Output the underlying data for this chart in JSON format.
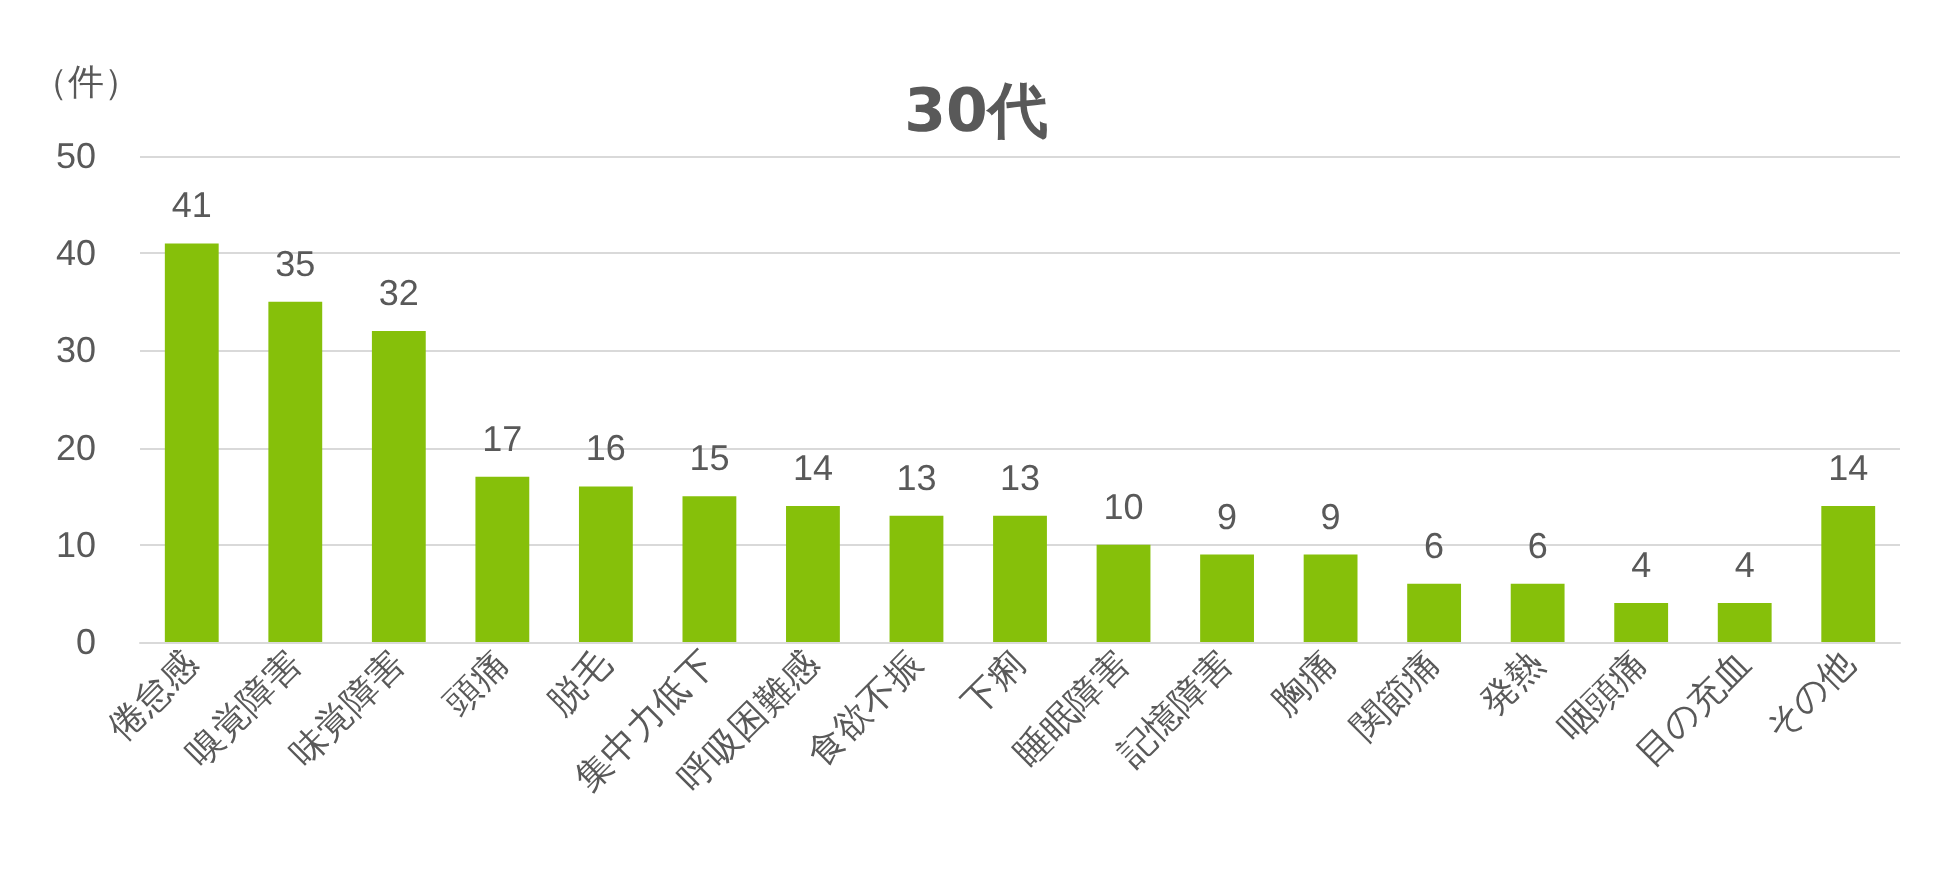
{
  "chart_data": {
    "type": "bar",
    "title": "30代",
    "ylabel": "（件）",
    "categories": [
      "倦怠感",
      "嗅覚障害",
      "味覚障害",
      "頭痛",
      "脱毛",
      "集中力低下",
      "呼吸困難感",
      "食欲不振",
      "下痢",
      "睡眠障害",
      "記憶障害",
      "胸痛",
      "関節痛",
      "発熱",
      "咽頭痛",
      "目の充血",
      "その他"
    ],
    "values": [
      41,
      35,
      32,
      17,
      16,
      15,
      14,
      13,
      13,
      10,
      9,
      9,
      6,
      6,
      4,
      4,
      14
    ],
    "color": "#86c00a",
    "ylim": [
      0,
      50
    ],
    "yticks": [
      0,
      10,
      20,
      30,
      40,
      50
    ],
    "grid": "y",
    "data_labels": true
  }
}
